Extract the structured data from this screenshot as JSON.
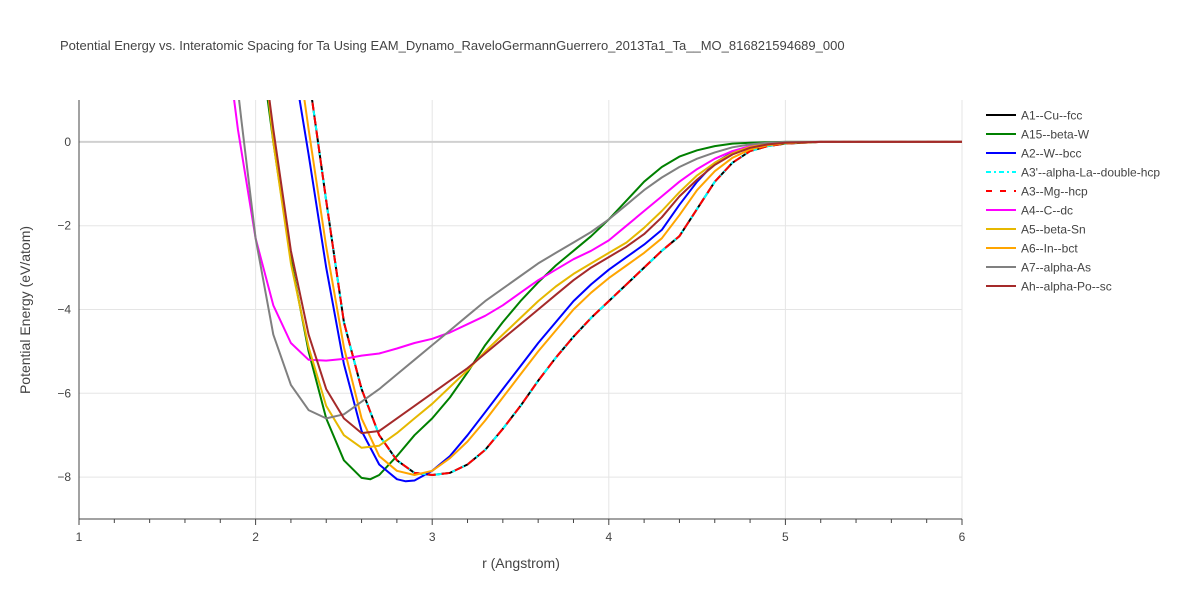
{
  "chart_data": {
    "type": "line",
    "title": "Potential Energy vs. Interatomic Spacing for Ta Using EAM_Dynamo_RaveloGermannGuerrero_2013Ta1_Ta__MO_816821594689_000",
    "xlabel": "r (Angstrom)",
    "ylabel": "Potential Energy (eV/atom)",
    "xlim": [
      1,
      6
    ],
    "ylim": [
      -9,
      1
    ],
    "xticks": [
      1,
      2,
      3,
      4,
      5,
      6
    ],
    "yticks": [
      0,
      -2,
      -4,
      -6,
      -8
    ],
    "xtick_labels": [
      "1",
      "2",
      "3",
      "4",
      "5",
      "6"
    ],
    "ytick_labels": [
      "0",
      "−2",
      "−4",
      "−6",
      "−8"
    ],
    "grid": true,
    "legend_position": "right",
    "series": [
      {
        "name": "A1--Cu--fcc",
        "color": "#000000",
        "dash": "solid",
        "x": [
          2.3,
          2.4,
          2.5,
          2.6,
          2.7,
          2.8,
          2.9,
          3.0,
          3.1,
          3.2,
          3.3,
          3.4,
          3.5,
          3.6,
          3.7,
          3.8,
          3.9,
          4.0,
          4.1,
          4.2,
          4.3,
          4.4,
          4.5,
          4.6,
          4.7,
          4.8,
          4.9,
          5.0,
          5.2,
          6.0
        ],
        "y": [
          1.6,
          -1.4,
          -4.3,
          -5.9,
          -7.0,
          -7.6,
          -7.9,
          -7.95,
          -7.9,
          -7.7,
          -7.35,
          -6.85,
          -6.3,
          -5.7,
          -5.15,
          -4.65,
          -4.2,
          -3.8,
          -3.4,
          -3.0,
          -2.6,
          -2.25,
          -1.6,
          -0.95,
          -0.5,
          -0.22,
          -0.1,
          -0.04,
          0,
          0
        ]
      },
      {
        "name": "A15--beta-W",
        "color": "#008000",
        "dash": "solid",
        "x": [
          2.05,
          2.1,
          2.2,
          2.3,
          2.4,
          2.5,
          2.6,
          2.65,
          2.7,
          2.8,
          2.9,
          3.0,
          3.1,
          3.2,
          3.3,
          3.4,
          3.5,
          3.6,
          3.7,
          3.8,
          3.9,
          4.0,
          4.1,
          4.2,
          4.3,
          4.4,
          4.5,
          4.6,
          4.7,
          4.8,
          5.0,
          6.0
        ],
        "y": [
          1.6,
          0.0,
          -2.8,
          -5.0,
          -6.6,
          -7.6,
          -8.02,
          -8.05,
          -7.95,
          -7.5,
          -7.0,
          -6.6,
          -6.1,
          -5.5,
          -4.85,
          -4.3,
          -3.8,
          -3.35,
          -2.95,
          -2.6,
          -2.25,
          -1.85,
          -1.4,
          -0.95,
          -0.6,
          -0.35,
          -0.2,
          -0.1,
          -0.04,
          -0.02,
          0,
          0
        ]
      },
      {
        "name": "A2--W--bcc",
        "color": "#0000ff",
        "dash": "solid",
        "x": [
          2.23,
          2.3,
          2.4,
          2.5,
          2.6,
          2.7,
          2.8,
          2.85,
          2.9,
          3.0,
          3.1,
          3.2,
          3.3,
          3.4,
          3.5,
          3.6,
          3.7,
          3.8,
          3.9,
          4.0,
          4.1,
          4.2,
          4.3,
          4.4,
          4.5,
          4.6,
          4.7,
          4.8,
          4.9,
          5.0,
          5.2,
          6.0
        ],
        "y": [
          1.5,
          -0.3,
          -3.0,
          -5.3,
          -6.9,
          -7.7,
          -8.05,
          -8.1,
          -8.08,
          -7.85,
          -7.5,
          -7.0,
          -6.45,
          -5.9,
          -5.35,
          -4.8,
          -4.3,
          -3.8,
          -3.4,
          -3.05,
          -2.75,
          -2.45,
          -2.1,
          -1.5,
          -0.95,
          -0.5,
          -0.25,
          -0.12,
          -0.05,
          -0.02,
          0,
          0
        ]
      },
      {
        "name": "A3'--alpha-La--double-hcp",
        "color": "#00ffff",
        "dash": "dashdot",
        "x": [
          2.3,
          2.4,
          2.5,
          2.6,
          2.7,
          2.8,
          2.9,
          3.0,
          3.1,
          3.2,
          3.3,
          3.4,
          3.5,
          3.6,
          3.7,
          3.8,
          3.9,
          4.0,
          4.1,
          4.2,
          4.3,
          4.4,
          4.5,
          4.6,
          4.7,
          4.8,
          4.9,
          5.0,
          5.2,
          6.0
        ],
        "y": [
          1.6,
          -1.4,
          -4.3,
          -5.9,
          -7.0,
          -7.6,
          -7.9,
          -7.95,
          -7.9,
          -7.7,
          -7.35,
          -6.85,
          -6.3,
          -5.7,
          -5.15,
          -4.65,
          -4.2,
          -3.8,
          -3.4,
          -3.0,
          -2.6,
          -2.25,
          -1.6,
          -0.95,
          -0.5,
          -0.22,
          -0.1,
          -0.04,
          0,
          0
        ]
      },
      {
        "name": "A3--Mg--hcp",
        "color": "#ff0000",
        "dash": "dash",
        "x": [
          2.3,
          2.4,
          2.5,
          2.6,
          2.7,
          2.8,
          2.9,
          3.0,
          3.1,
          3.2,
          3.3,
          3.4,
          3.5,
          3.6,
          3.7,
          3.8,
          3.9,
          4.0,
          4.1,
          4.2,
          4.3,
          4.4,
          4.5,
          4.6,
          4.7,
          4.8,
          4.9,
          5.0,
          5.2,
          6.0
        ],
        "y": [
          1.6,
          -1.4,
          -4.3,
          -5.9,
          -7.0,
          -7.6,
          -7.9,
          -7.95,
          -7.9,
          -7.7,
          -7.35,
          -6.85,
          -6.3,
          -5.7,
          -5.15,
          -4.65,
          -4.2,
          -3.8,
          -3.4,
          -3.0,
          -2.6,
          -2.25,
          -1.6,
          -0.95,
          -0.5,
          -0.22,
          -0.1,
          -0.04,
          0,
          0
        ]
      },
      {
        "name": "A4--C--dc",
        "color": "#ff00ff",
        "dash": "solid",
        "x": [
          1.86,
          1.9,
          2.0,
          2.1,
          2.2,
          2.3,
          2.4,
          2.5,
          2.6,
          2.7,
          2.8,
          2.9,
          3.0,
          3.1,
          3.2,
          3.3,
          3.4,
          3.5,
          3.6,
          3.7,
          3.8,
          3.9,
          4.0,
          4.1,
          4.2,
          4.3,
          4.4,
          4.5,
          4.6,
          4.7,
          4.8,
          4.9,
          5.0,
          5.2,
          6.0
        ],
        "y": [
          1.6,
          0.3,
          -2.3,
          -3.9,
          -4.8,
          -5.2,
          -5.22,
          -5.18,
          -5.1,
          -5.05,
          -4.93,
          -4.8,
          -4.7,
          -4.55,
          -4.35,
          -4.15,
          -3.9,
          -3.6,
          -3.3,
          -3.05,
          -2.8,
          -2.6,
          -2.35,
          -2.0,
          -1.65,
          -1.3,
          -0.95,
          -0.65,
          -0.4,
          -0.22,
          -0.1,
          -0.04,
          -0.01,
          0,
          0
        ]
      },
      {
        "name": "A5--beta-Sn",
        "color": "#e6b800",
        "dash": "solid",
        "x": [
          2.06,
          2.1,
          2.2,
          2.3,
          2.4,
          2.5,
          2.6,
          2.7,
          2.8,
          2.9,
          3.0,
          3.1,
          3.2,
          3.3,
          3.4,
          3.5,
          3.6,
          3.7,
          3.8,
          3.9,
          4.0,
          4.1,
          4.2,
          4.3,
          4.4,
          4.5,
          4.6,
          4.7,
          4.8,
          4.9,
          5.0,
          5.2,
          6.0
        ],
        "y": [
          1.6,
          0.0,
          -2.9,
          -4.9,
          -6.3,
          -7.0,
          -7.3,
          -7.25,
          -6.95,
          -6.6,
          -6.25,
          -5.85,
          -5.45,
          -5.0,
          -4.6,
          -4.2,
          -3.8,
          -3.45,
          -3.15,
          -2.9,
          -2.65,
          -2.4,
          -2.05,
          -1.65,
          -1.2,
          -0.8,
          -0.5,
          -0.27,
          -0.12,
          -0.05,
          -0.02,
          0,
          0
        ]
      },
      {
        "name": "A6--In--bct",
        "color": "#ffa500",
        "dash": "solid",
        "x": [
          2.26,
          2.3,
          2.4,
          2.5,
          2.6,
          2.7,
          2.8,
          2.9,
          3.0,
          3.1,
          3.2,
          3.3,
          3.4,
          3.5,
          3.6,
          3.7,
          3.8,
          3.9,
          4.0,
          4.1,
          4.2,
          4.3,
          4.4,
          4.5,
          4.6,
          4.7,
          4.8,
          4.9,
          5.0,
          5.2,
          6.0
        ],
        "y": [
          1.5,
          0.3,
          -2.5,
          -4.9,
          -6.6,
          -7.5,
          -7.85,
          -7.95,
          -7.85,
          -7.55,
          -7.15,
          -6.65,
          -6.1,
          -5.55,
          -5.0,
          -4.5,
          -4.0,
          -3.6,
          -3.25,
          -2.95,
          -2.65,
          -2.3,
          -1.75,
          -1.15,
          -0.7,
          -0.38,
          -0.18,
          -0.08,
          -0.03,
          0,
          0
        ]
      },
      {
        "name": "A7--alpha-As",
        "color": "#808080",
        "dash": "solid",
        "x": [
          1.89,
          1.92,
          2.0,
          2.1,
          2.2,
          2.3,
          2.4,
          2.5,
          2.6,
          2.7,
          2.8,
          2.9,
          3.0,
          3.1,
          3.2,
          3.3,
          3.4,
          3.5,
          3.6,
          3.7,
          3.8,
          3.9,
          4.0,
          4.1,
          4.2,
          4.3,
          4.4,
          4.5,
          4.6,
          4.7,
          4.8,
          4.9,
          5.0,
          6.0
        ],
        "y": [
          1.6,
          0.5,
          -2.3,
          -4.6,
          -5.8,
          -6.4,
          -6.6,
          -6.5,
          -6.2,
          -5.9,
          -5.55,
          -5.2,
          -4.85,
          -4.5,
          -4.15,
          -3.8,
          -3.5,
          -3.2,
          -2.9,
          -2.65,
          -2.4,
          -2.15,
          -1.85,
          -1.5,
          -1.15,
          -0.85,
          -0.6,
          -0.4,
          -0.25,
          -0.13,
          -0.06,
          -0.02,
          0,
          0
        ]
      },
      {
        "name": "Ah--alpha-Po--sc",
        "color": "#a52a2a",
        "dash": "solid",
        "x": [
          2.06,
          2.1,
          2.2,
          2.3,
          2.4,
          2.5,
          2.6,
          2.7,
          2.8,
          2.9,
          3.0,
          3.1,
          3.2,
          3.3,
          3.4,
          3.5,
          3.6,
          3.7,
          3.8,
          3.9,
          4.0,
          4.1,
          4.2,
          4.3,
          4.4,
          4.5,
          4.6,
          4.7,
          4.8,
          4.9,
          5.0,
          5.2,
          6.0
        ],
        "y": [
          1.6,
          0.3,
          -2.6,
          -4.6,
          -5.9,
          -6.6,
          -6.95,
          -6.9,
          -6.6,
          -6.3,
          -6.0,
          -5.7,
          -5.4,
          -5.05,
          -4.7,
          -4.35,
          -4.0,
          -3.65,
          -3.3,
          -3.0,
          -2.75,
          -2.5,
          -2.2,
          -1.8,
          -1.3,
          -0.9,
          -0.55,
          -0.3,
          -0.14,
          -0.06,
          -0.02,
          0,
          0
        ]
      }
    ]
  }
}
